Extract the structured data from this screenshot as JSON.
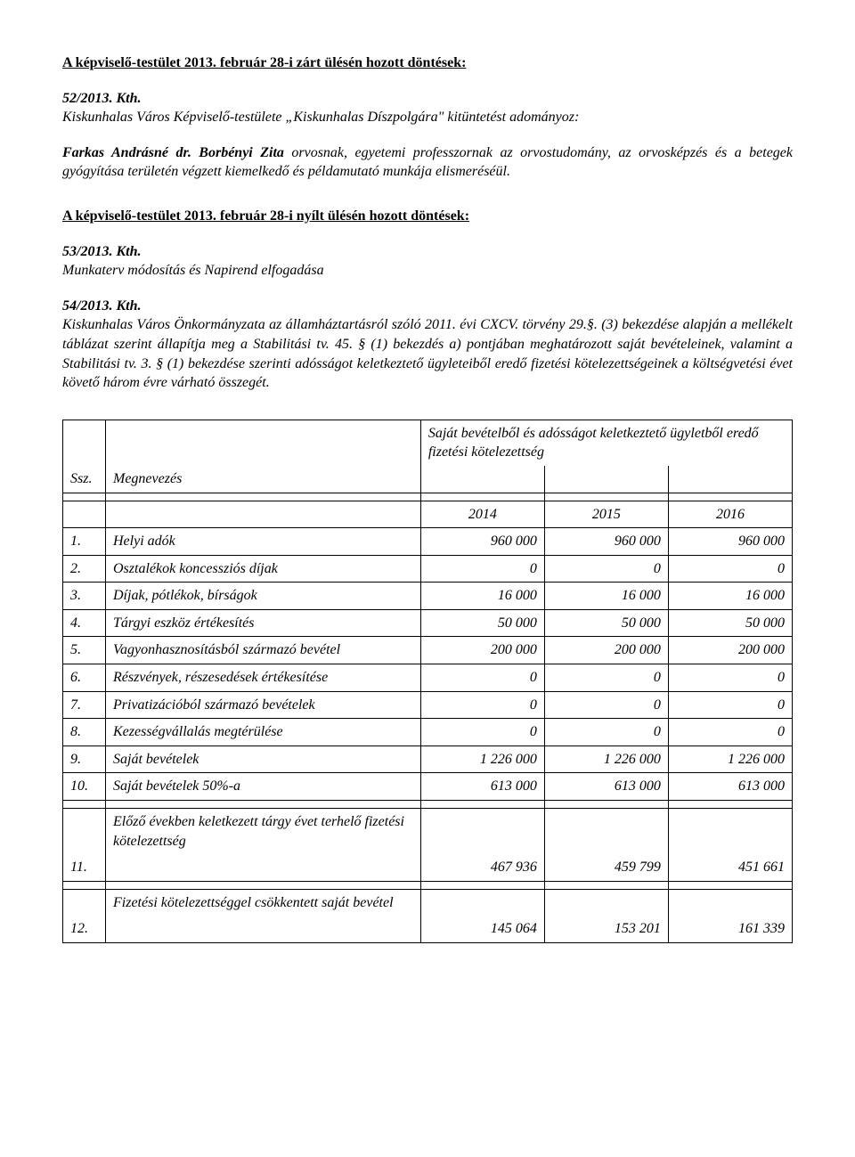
{
  "heading1": "A képviselő-testület 2013. február 28-i zárt ülésén hozott döntések:",
  "res52": {
    "kth": "52/2013. Kth.",
    "line": "Kiskunhalas Város Képviselő-testülete „Kiskunhalas Díszpolgára\" kitüntetést adományoz:",
    "names": "Farkas Andrásné dr. Borbényi Zita",
    "rest": " orvosnak, egyetemi professzornak az orvostudomány, az orvosképzés és a betegek gyógyítása területén végzett kiemelkedő és példamutató munkája elismeréséül."
  },
  "heading2": "A képviselő-testület 2013. február 28-i nyílt ülésén hozott döntések:",
  "res53": {
    "kth": "53/2013. Kth.",
    "text": "Munkaterv módosítás és Napirend elfogadása"
  },
  "res54": {
    "kth": "54/2013. Kth.",
    "text": "Kiskunhalas Város Önkormányzata az államháztartásról szóló 2011. évi CXCV. törvény 29.§. (3) bekezdése alapján a mellékelt táblázat szerint állapítja meg a Stabilitási tv. 45. § (1) bekezdés a) pontjában meghatározott saját bevételeinek, valamint a Stabilitási tv. 3. § (1) bekezdése szerinti adósságot keletkeztető ügyleteiből eredő fizetési kötelezettségeinek a költségvetési évet követő három évre várható összegét."
  },
  "table": {
    "header_ssz": "Ssz.",
    "header_megnev": "Megnevezés",
    "header_right": "Saját bevételből és adósságot keletkeztető ügyletből eredő fizetési kötelezettség",
    "years": [
      "2014",
      "2015",
      "2016"
    ],
    "rows": [
      {
        "idx": "1.",
        "label": "Helyi adók",
        "v": [
          "960 000",
          "960 000",
          "960 000"
        ]
      },
      {
        "idx": "2.",
        "label": "Osztalékok koncessziós díjak",
        "v": [
          "0",
          "0",
          "0"
        ]
      },
      {
        "idx": "3.",
        "label": "Díjak, pótlékok, bírságok",
        "v": [
          "16 000",
          "16 000",
          "16 000"
        ]
      },
      {
        "idx": "4.",
        "label": "Tárgyi eszköz értékesítés",
        "v": [
          "50 000",
          "50 000",
          "50 000"
        ]
      },
      {
        "idx": "5.",
        "label": "Vagyonhasznosításból származó bevétel",
        "v": [
          "200 000",
          "200 000",
          "200 000"
        ]
      },
      {
        "idx": "6.",
        "label": "Részvények, részesedések értékesítése",
        "v": [
          "0",
          "0",
          "0"
        ]
      },
      {
        "idx": "7.",
        "label": "Privatizációból származó bevételek",
        "v": [
          "0",
          "0",
          "0"
        ]
      },
      {
        "idx": "8.",
        "label": "Kezességvállalás megtérülése",
        "v": [
          "0",
          "0",
          "0"
        ]
      },
      {
        "idx": "9.",
        "label": "Saját bevételek",
        "v": [
          "1 226 000",
          "1 226 000",
          "1 226 000"
        ]
      },
      {
        "idx": "10.",
        "label": "Saját bevételek 50%-a",
        "v": [
          "613 000",
          "613 000",
          "613 000"
        ]
      }
    ],
    "row11": {
      "idx": "11.",
      "label": "Előző években keletkezett tárgy évet terhelő fizetési kötelezettség",
      "v": [
        "467 936",
        "459 799",
        "451 661"
      ]
    },
    "row12": {
      "idx": "12.",
      "label": "Fizetési kötelezettséggel csökkentett saját bevétel",
      "v": [
        "145 064",
        "153 201",
        "161 339"
      ]
    }
  }
}
